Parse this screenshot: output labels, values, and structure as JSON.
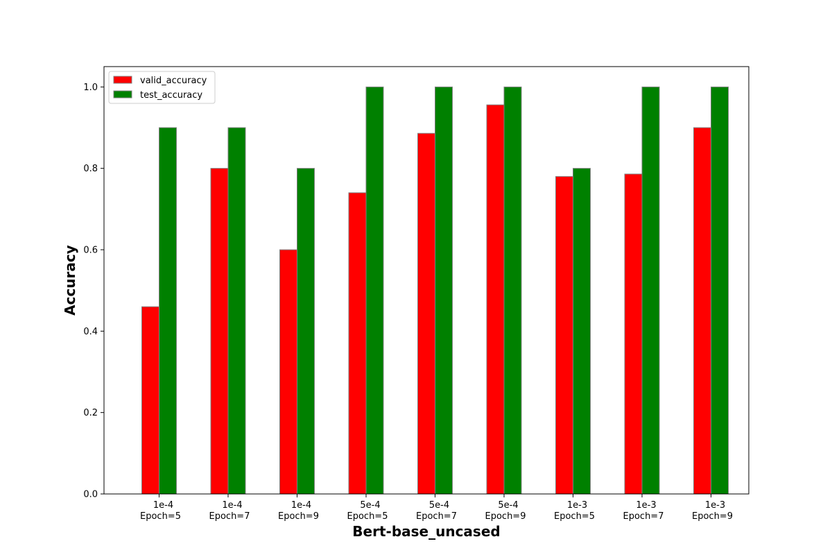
{
  "chart_data": {
    "type": "bar",
    "title": "",
    "xlabel": "Bert-base_uncased",
    "ylabel": "Accuracy",
    "ylim": [
      0,
      1.05
    ],
    "yticks": [
      "0.0",
      "0.2",
      "0.4",
      "0.6",
      "0.8",
      "1.0"
    ],
    "ytick_values": [
      0,
      0.2,
      0.4,
      0.6,
      0.8,
      1.0
    ],
    "categories": [
      [
        "1e-4",
        "Epoch=5"
      ],
      [
        "1e-4",
        "Epoch=7"
      ],
      [
        "1e-4",
        "Epoch=9"
      ],
      [
        "5e-4",
        "Epoch=5"
      ],
      [
        "5e-4",
        "Epoch=7"
      ],
      [
        "5e-4",
        "Epoch=9"
      ],
      [
        "1e-3",
        "Epoch=5"
      ],
      [
        "1e-3",
        "Epoch=7"
      ],
      [
        "1e-3",
        "Epoch=9"
      ]
    ],
    "series": [
      {
        "name": "valid_accuracy",
        "color": "#ff0000",
        "values": [
          0.46,
          0.8,
          0.6,
          0.74,
          0.886,
          0.956,
          0.78,
          0.786,
          0.9
        ]
      },
      {
        "name": "test_accuracy",
        "color": "#008000",
        "values": [
          0.9,
          0.9,
          0.8,
          1.0,
          1.0,
          1.0,
          0.8,
          1.0,
          1.0
        ]
      }
    ],
    "legend": "top-left",
    "grid": false
  }
}
